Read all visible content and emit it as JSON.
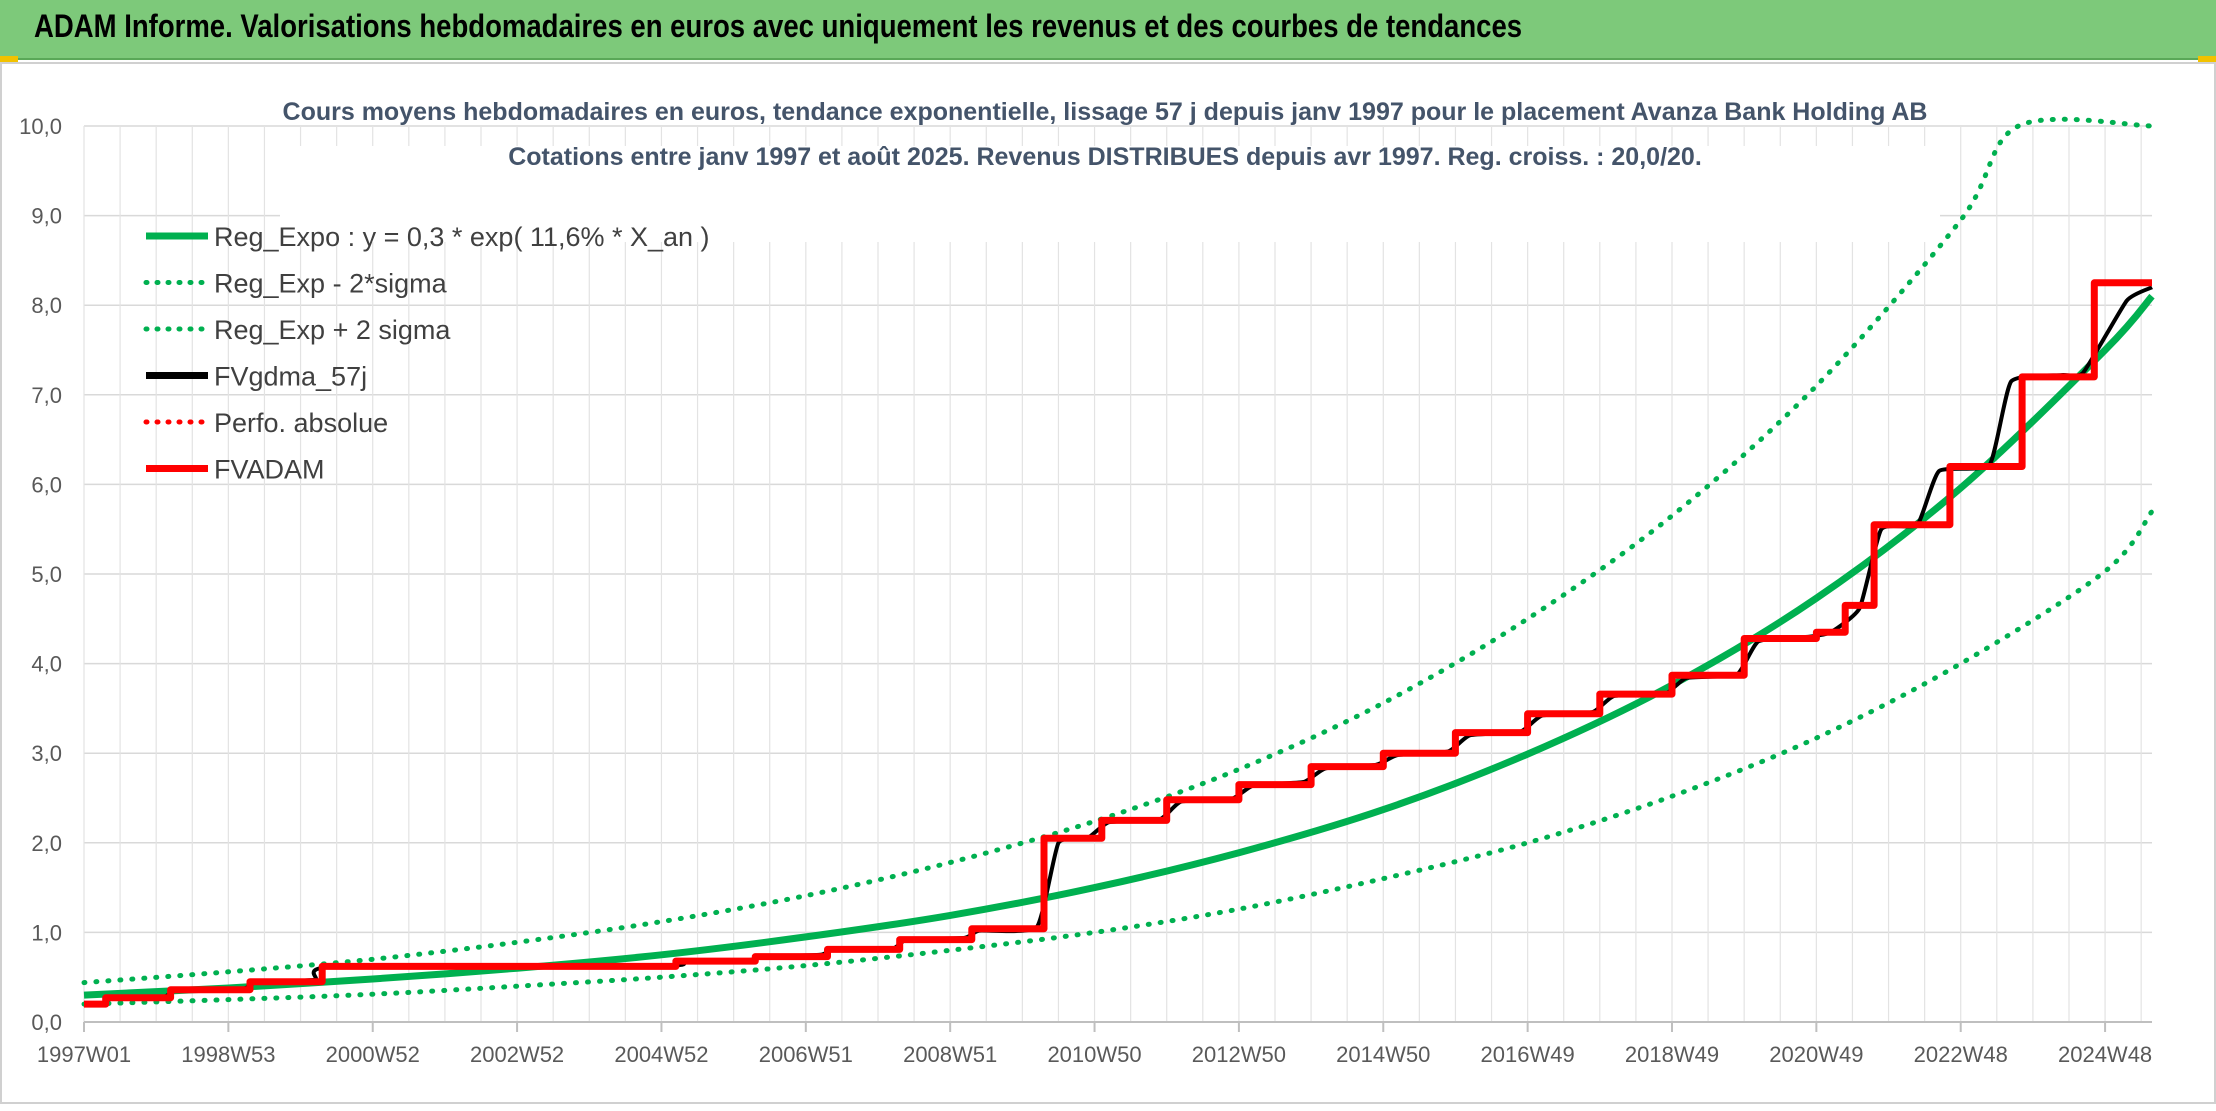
{
  "banner": {
    "title": "ADAM Informe. Valorisations hebdomadaires en euros avec uniquement les revenus et des courbes de tendances"
  },
  "colors": {
    "banner_bg": "#7dc97a",
    "green": "#00b050",
    "black": "#000000",
    "red": "#ff0000",
    "grid": "#d9d9d9"
  },
  "chart_data": {
    "type": "line",
    "title": "Cours moyens hebdomadaires en euros, tendance exponentielle, lissage 57 j depuis janv 1997 pour le placement Avanza Bank Holding AB",
    "subtitle": "Cotations entre janv 1997 et août 2025. Revenus DISTRIBUES depuis avr 1997. Reg. croiss. : 20,0/20.",
    "xlabel": "",
    "ylabel": "",
    "ylim": [
      0,
      10
    ],
    "xlim": [
      1997.0,
      2025.65
    ],
    "grid": true,
    "legend_position": "top-left",
    "y_ticks": [
      "0,0",
      "1,0",
      "2,0",
      "3,0",
      "4,0",
      "5,0",
      "6,0",
      "7,0",
      "8,0",
      "9,0",
      "10,0"
    ],
    "x_ticks": [
      {
        "label": "1997W01",
        "x": 1997.0
      },
      {
        "label": "1998W53",
        "x": 1999.0
      },
      {
        "label": "2000W52",
        "x": 2001.0
      },
      {
        "label": "2002W52",
        "x": 2003.0
      },
      {
        "label": "2004W52",
        "x": 2005.0
      },
      {
        "label": "2006W51",
        "x": 2007.0
      },
      {
        "label": "2008W51",
        "x": 2009.0
      },
      {
        "label": "2010W50",
        "x": 2011.0
      },
      {
        "label": "2012W50",
        "x": 2013.0
      },
      {
        "label": "2014W50",
        "x": 2015.0
      },
      {
        "label": "2016W49",
        "x": 2017.0
      },
      {
        "label": "2018W49",
        "x": 2019.0
      },
      {
        "label": "2020W49",
        "x": 2021.0
      },
      {
        "label": "2022W48",
        "x": 2023.0
      },
      {
        "label": "2024W48",
        "x": 2025.0
      }
    ],
    "series": [
      {
        "name": "Reg_Expo : y = 0,3 * exp( 11,6% *  X_an )",
        "color": "#00b050",
        "style": "solid",
        "width": 7,
        "x": [
          1997.0,
          1999.0,
          2001.0,
          2003.0,
          2005.0,
          2007.0,
          2009.0,
          2011.0,
          2013.0,
          2015.0,
          2017.0,
          2019.0,
          2021.0,
          2023.0,
          2025.0,
          2025.65
        ],
        "y": [
          0.3,
          0.38,
          0.48,
          0.6,
          0.75,
          0.95,
          1.19,
          1.5,
          1.89,
          2.37,
          2.99,
          3.76,
          4.73,
          5.96,
          7.5,
          8.1
        ]
      },
      {
        "name": "Reg_Exp - 2*sigma",
        "color": "#00b050",
        "style": "dotted",
        "width": 5,
        "x": [
          1997.0,
          1999.0,
          2001.0,
          2003.0,
          2005.0,
          2007.0,
          2009.0,
          2011.0,
          2013.0,
          2015.0,
          2017.0,
          2019.0,
          2021.0,
          2023.0,
          2025.0,
          2025.65
        ],
        "y": [
          0.2,
          0.25,
          0.31,
          0.4,
          0.5,
          0.63,
          0.8,
          1.0,
          1.26,
          1.6,
          2.0,
          2.52,
          3.17,
          4.0,
          5.03,
          5.7
        ]
      },
      {
        "name": "Reg_Exp + 2 sigma",
        "color": "#00b050",
        "style": "dotted",
        "width": 5,
        "x": [
          1997.0,
          1999.0,
          2001.0,
          2003.0,
          2005.0,
          2007.0,
          2009.0,
          2011.0,
          2013.0,
          2015.0,
          2017.0,
          2019.0,
          2021.0,
          2023.0,
          2023.8,
          2025.65
        ],
        "y": [
          0.44,
          0.56,
          0.7,
          0.89,
          1.12,
          1.41,
          1.78,
          2.24,
          2.82,
          3.56,
          4.5,
          5.65,
          7.1,
          8.95,
          10.0,
          10.0
        ]
      },
      {
        "name": "FVgdma_57j",
        "color": "#000000",
        "style": "solid",
        "width": 4,
        "x": [
          1997.0,
          1997.25,
          1997.4,
          1998.1,
          1998.3,
          1999.2,
          1999.4,
          2000.2,
          2000.4,
          2005.1,
          2005.3,
          2006.2,
          2006.4,
          2007.2,
          2007.4,
          2008.2,
          2008.4,
          2009.2,
          2009.4,
          2010.2,
          2010.5,
          2010.9,
          2011.2,
          2011.9,
          2012.2,
          2012.9,
          2013.2,
          2013.9,
          2014.2,
          2014.9,
          2015.2,
          2015.9,
          2016.2,
          2016.9,
          2017.2,
          2017.9,
          2018.2,
          2018.9,
          2019.2,
          2019.9,
          2020.2,
          2020.9,
          2021.2,
          2021.6,
          2021.9,
          2022.4,
          2022.7,
          2023.4,
          2023.7,
          2024.4,
          2024.7,
          2025.3,
          2025.65
        ],
        "y": [
          0.2,
          0.2,
          0.27,
          0.28,
          0.36,
          0.37,
          0.45,
          0.47,
          0.61,
          0.63,
          0.68,
          0.69,
          0.73,
          0.75,
          0.81,
          0.82,
          0.92,
          0.94,
          1.02,
          1.06,
          2.0,
          2.05,
          2.23,
          2.26,
          2.46,
          2.49,
          2.64,
          2.68,
          2.83,
          2.87,
          2.98,
          3.02,
          3.2,
          3.24,
          3.42,
          3.46,
          3.64,
          3.66,
          3.84,
          3.88,
          4.25,
          4.3,
          4.35,
          4.62,
          5.5,
          5.55,
          6.15,
          6.22,
          7.15,
          7.22,
          7.25,
          8.05,
          8.2
        ]
      },
      {
        "name": "Perfo. absolue",
        "color": "#ff0000",
        "style": "dotted",
        "width": 4,
        "x": [],
        "y": []
      },
      {
        "name": "FVADAM",
        "color": "#ff0000",
        "style": "step",
        "width": 7,
        "x": [
          1997.0,
          1997.3,
          1998.2,
          1999.3,
          2000.3,
          2005.2,
          2006.3,
          2007.3,
          2008.3,
          2009.3,
          2010.3,
          2011.1,
          2012.0,
          2013.0,
          2014.0,
          2015.0,
          2016.0,
          2017.0,
          2018.0,
          2019.0,
          2020.0,
          2021.0,
          2021.4,
          2021.8,
          2022.85,
          2023.85,
          2024.85,
          2025.4,
          2025.65
        ],
        "y": [
          0.2,
          0.27,
          0.36,
          0.45,
          0.62,
          0.68,
          0.73,
          0.81,
          0.92,
          1.04,
          2.05,
          2.25,
          2.48,
          2.65,
          2.85,
          3.0,
          3.23,
          3.44,
          3.66,
          3.87,
          4.28,
          4.35,
          4.65,
          5.55,
          6.2,
          7.2,
          8.25,
          8.25,
          8.25
        ]
      }
    ]
  }
}
